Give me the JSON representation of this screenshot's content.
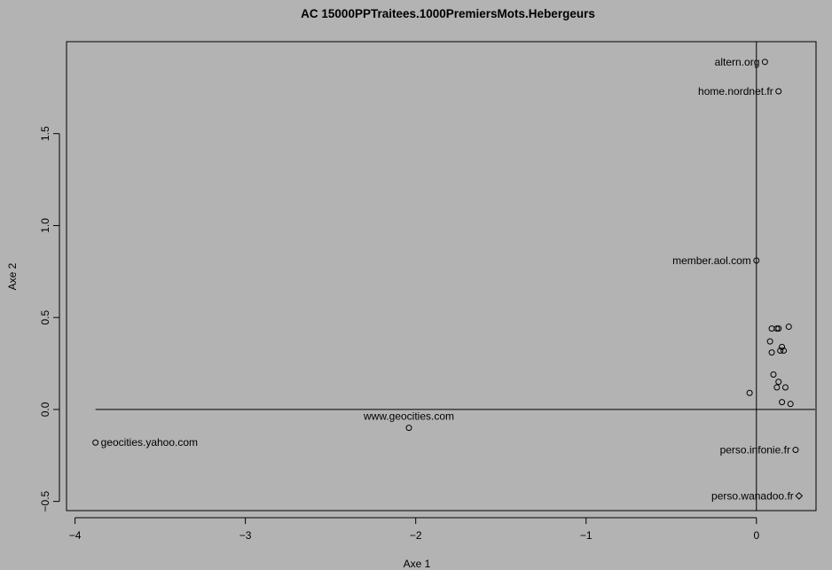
{
  "chart_data": {
    "type": "scatter",
    "title": "AC 15000PPTraitees.1000PremiersMots.Hebergeurs",
    "xlabel": "Axe 1",
    "ylabel": "Axe 2",
    "xlim": [
      -4.05,
      0.35
    ],
    "ylim": [
      -0.55,
      2.0
    ],
    "xticks": [
      -4,
      -3,
      -2,
      -1,
      0
    ],
    "yticks": [
      -0.5,
      0.0,
      0.5,
      1.0,
      1.5
    ],
    "xtick_labels": [
      "−4",
      "−3",
      "−2",
      "−1",
      "0"
    ],
    "ytick_labels": [
      "−0.5",
      "0.0",
      "0.5",
      "1.0",
      "1.5"
    ],
    "grid": false,
    "reference_lines": {
      "x": 0,
      "y": 0
    },
    "points": [
      {
        "x": 0.05,
        "y": 1.89,
        "label": "altern.org",
        "label_side": "left"
      },
      {
        "x": 0.13,
        "y": 1.73,
        "label": "home.nordnet.fr",
        "label_side": "left"
      },
      {
        "x": 0.0,
        "y": 0.81,
        "label": "member.aol.com",
        "label_side": "left"
      },
      {
        "x": -3.88,
        "y": -0.18,
        "label": "geocities.yahoo.com",
        "label_side": "right"
      },
      {
        "x": -2.04,
        "y": -0.1,
        "label": "www.geocities.com",
        "label_side": "top"
      },
      {
        "x": 0.23,
        "y": -0.22,
        "label": "perso.infonie.fr",
        "label_side": "left"
      },
      {
        "x": 0.25,
        "y": -0.47,
        "label": "perso.wanadoo.fr",
        "label_side": "left",
        "marker": "diamond"
      },
      {
        "x": 0.09,
        "y": 0.44,
        "label": ""
      },
      {
        "x": 0.12,
        "y": 0.44,
        "label": ""
      },
      {
        "x": 0.13,
        "y": 0.44,
        "label": ""
      },
      {
        "x": 0.19,
        "y": 0.45,
        "label": ""
      },
      {
        "x": 0.08,
        "y": 0.37,
        "label": ""
      },
      {
        "x": 0.15,
        "y": 0.34,
        "label": ""
      },
      {
        "x": 0.14,
        "y": 0.32,
        "label": ""
      },
      {
        "x": 0.16,
        "y": 0.32,
        "label": ""
      },
      {
        "x": 0.09,
        "y": 0.31,
        "label": ""
      },
      {
        "x": 0.1,
        "y": 0.19,
        "label": ""
      },
      {
        "x": 0.13,
        "y": 0.15,
        "label": ""
      },
      {
        "x": 0.12,
        "y": 0.12,
        "label": ""
      },
      {
        "x": 0.17,
        "y": 0.12,
        "label": ""
      },
      {
        "x": -0.04,
        "y": 0.09,
        "label": ""
      },
      {
        "x": 0.15,
        "y": 0.04,
        "label": ""
      },
      {
        "x": 0.2,
        "y": 0.03,
        "label": ""
      }
    ]
  }
}
